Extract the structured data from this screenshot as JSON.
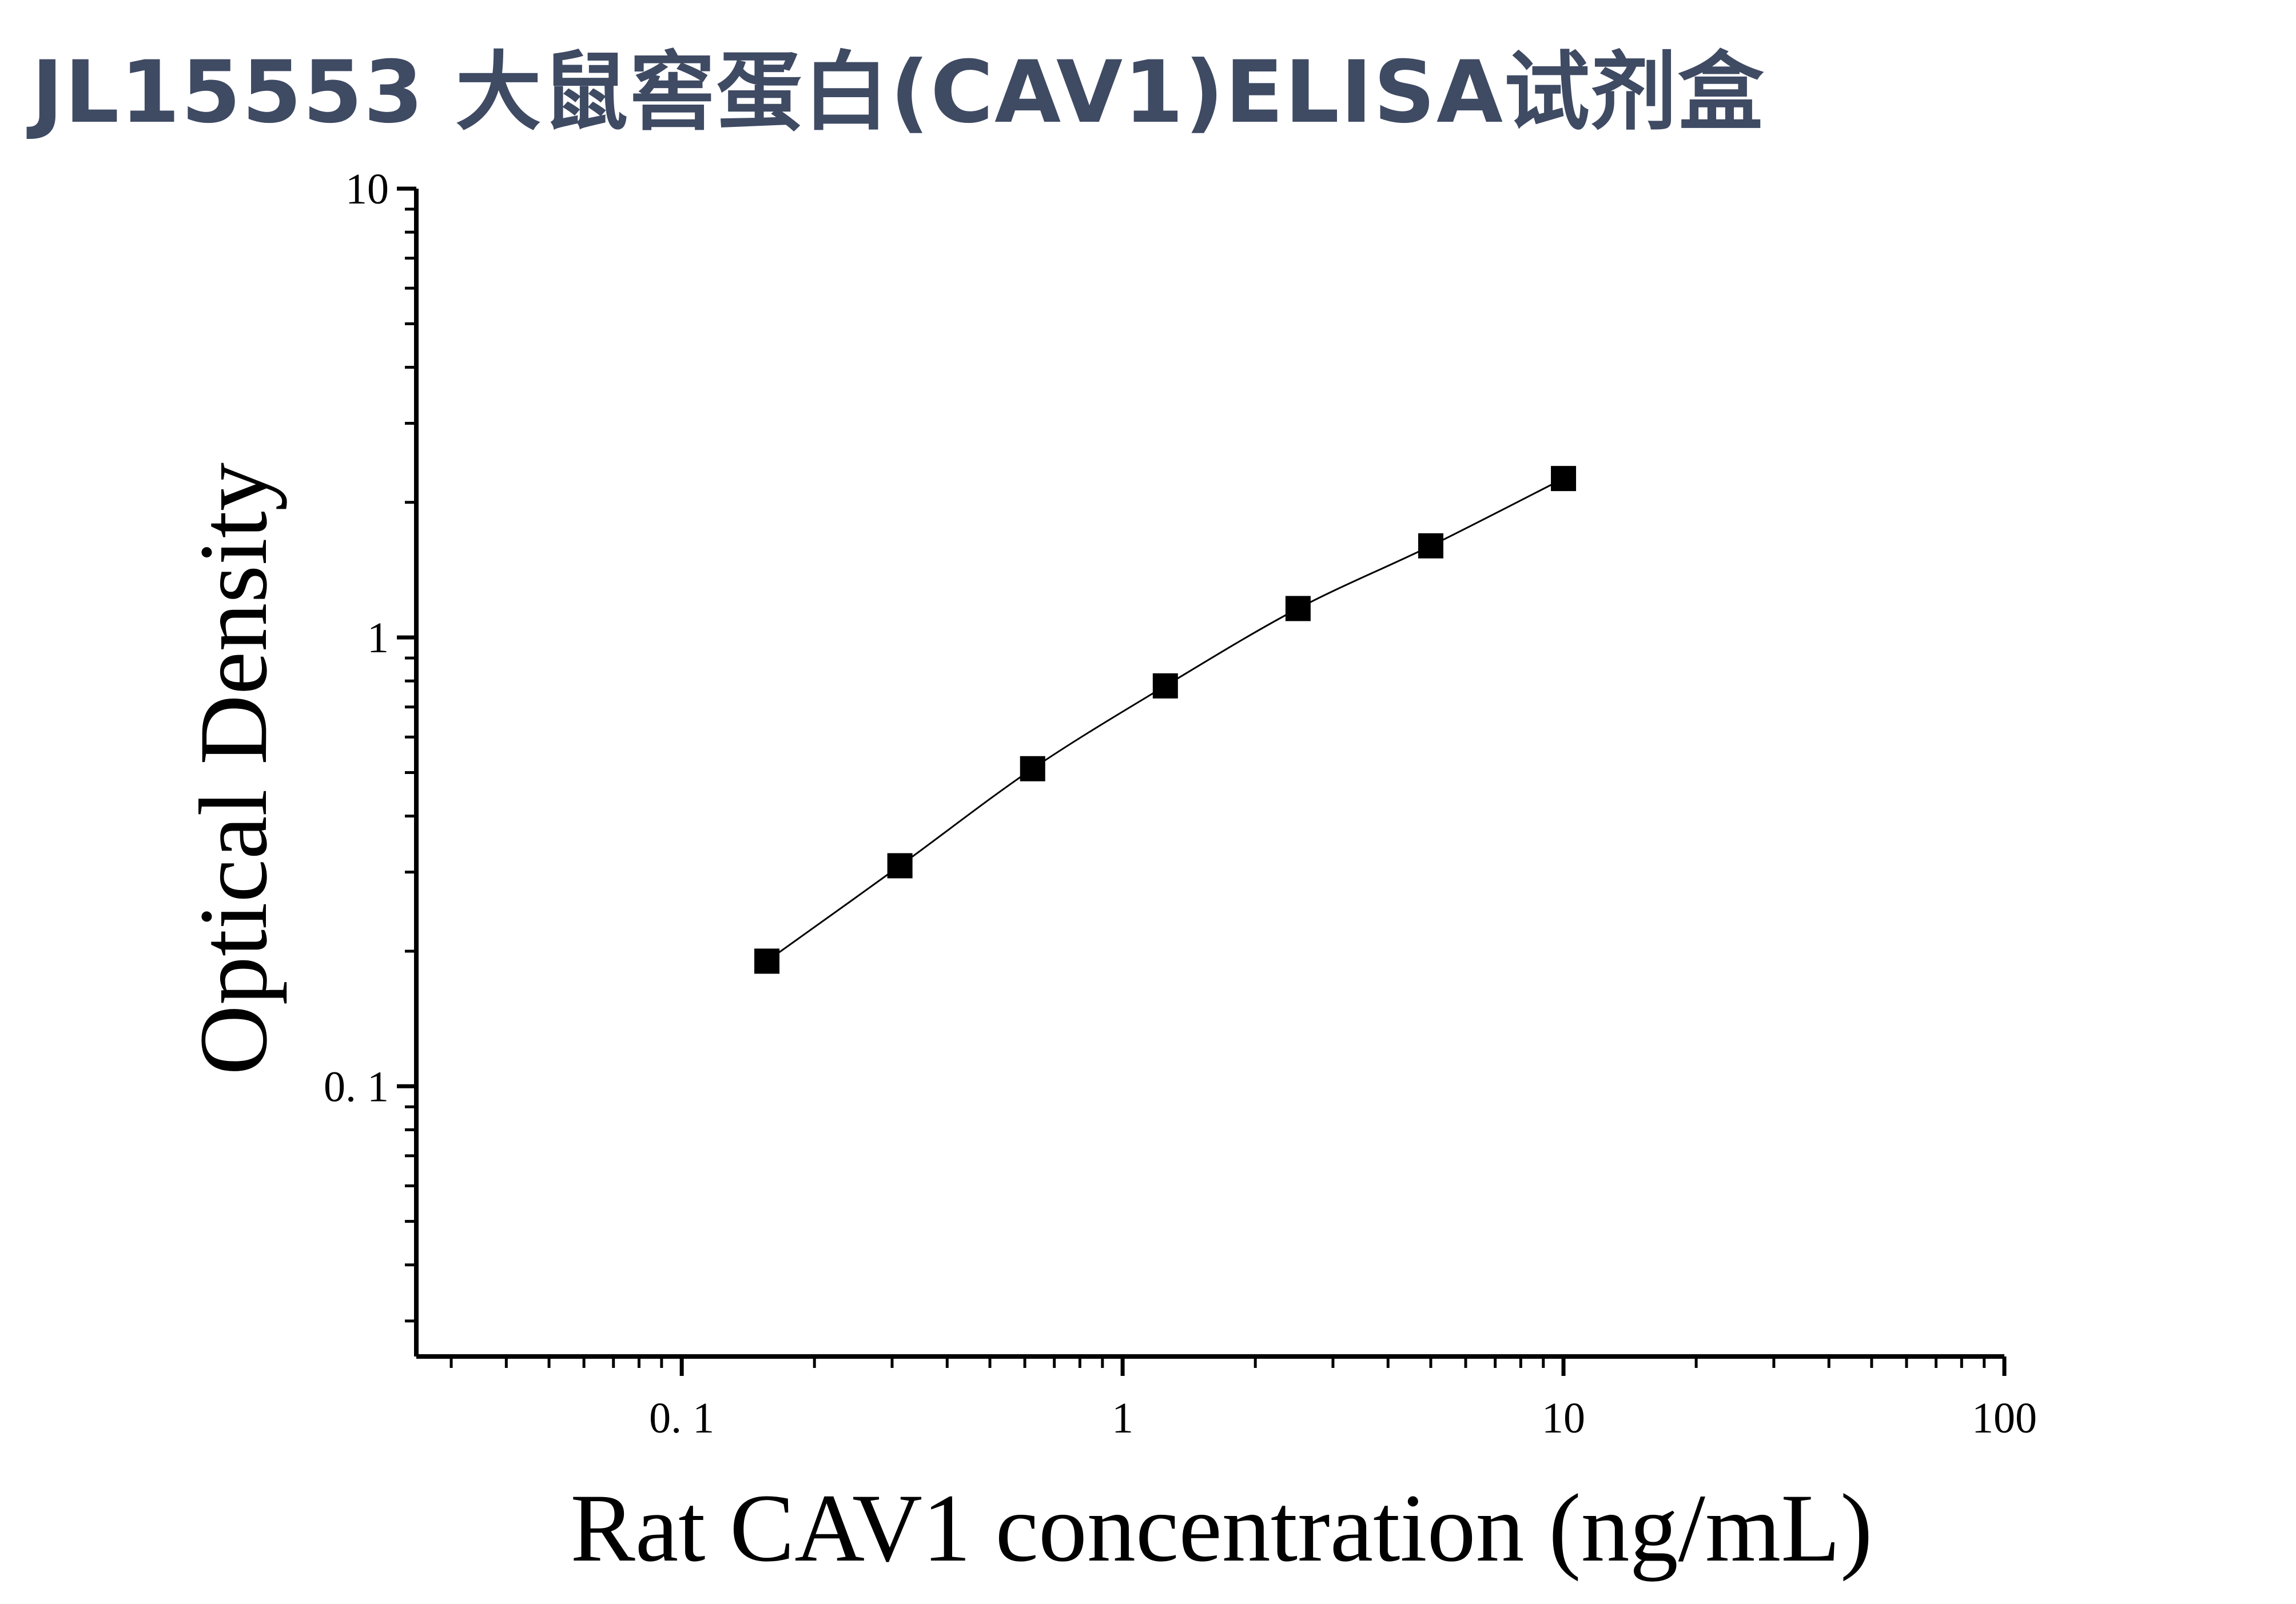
{
  "title": "JL15553 大鼠窖蛋白(CAV1)ELISA试剂盒",
  "chart_data": {
    "type": "scatter",
    "title": "JL15553 大鼠窖蛋白(CAV1)ELISA试剂盒",
    "xlabel": "Rat CAV1 concentration (ng/mL)",
    "ylabel": "Optical Density",
    "xscale": "log",
    "yscale": "log",
    "xlim": [
      0.025,
      100
    ],
    "ylim": [
      0.025,
      10
    ],
    "x_ticks": [
      {
        "value": 0.1,
        "label": "0. 1"
      },
      {
        "value": 1,
        "label": "1"
      },
      {
        "value": 10,
        "label": "10"
      },
      {
        "value": 100,
        "label": "100"
      }
    ],
    "y_ticks": [
      {
        "value": 0.1,
        "label": "0. 1"
      },
      {
        "value": 1,
        "label": "1"
      },
      {
        "value": 10,
        "label": "10"
      }
    ],
    "grid": false,
    "marker": "square",
    "fit_line": true,
    "color": "#000000",
    "series": [
      {
        "x": [
          0.156,
          0.3125,
          0.625,
          1.25,
          2.5,
          5,
          10
        ],
        "y": [
          0.19,
          0.31,
          0.51,
          0.78,
          1.16,
          1.6,
          2.26
        ]
      }
    ]
  }
}
